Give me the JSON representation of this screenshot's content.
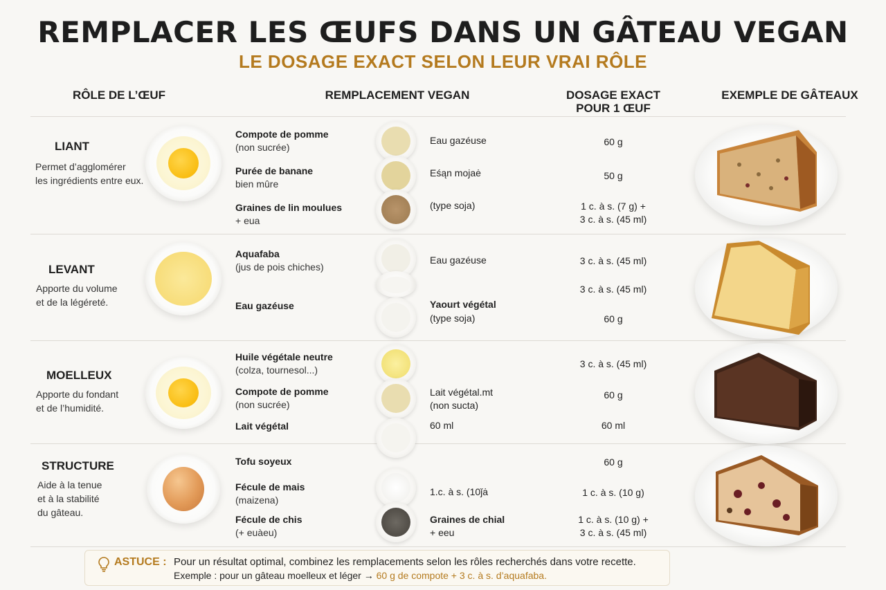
{
  "header": {
    "title": "REMPLACER LES ŒUFS DANS UN GÂTEAU VEGAN",
    "subtitle": "LE DOSAGE EXACT SELON LEUR VRAI RÔLE"
  },
  "columns": {
    "role": "RÔLE DE L’ŒUF",
    "replacement": "REMPLACEMENT VEGAN",
    "dose_line1": "DOSAGE EXACT",
    "dose_line2": "POUR 1 ŒUF",
    "example": "EXEMPLE DE GÂTEAUX"
  },
  "sections": [
    {
      "role": "LIANT",
      "desc1": "Permet d’agglomérer",
      "desc2": "les ingrédients entre eux.",
      "egg_icon": "egg-yolk-icon",
      "cake_icon": "banana-bread-slice-icon",
      "items": [
        {
          "name": "Compote de pomme",
          "sub": "(non sucrée)",
          "mid1": "Eau gazéuse",
          "dose1": "60 g",
          "bowl_icon": "applesauce-bowl-icon",
          "color": "#e9ddb0"
        },
        {
          "name": "Purée de banane",
          "sub": "bien mûre",
          "mid1": "Eśąn mojaė",
          "dose1": "50 g",
          "bowl_icon": "banana-puree-bowl-icon",
          "color": "#e3d49c"
        },
        {
          "name": "Graines de lin moulues",
          "sub": "+ eua",
          "mid1": "(type soja)",
          "dose1": "1 c. à s. (7 g) +",
          "dose2": "3 c. à s. (45 ml)",
          "bowl_icon": "flaxseed-bowl-icon",
          "color": "#a8855a"
        }
      ]
    },
    {
      "role": "LEVANT",
      "desc1": "Apporte du volume",
      "desc2": "et de la légéreté.",
      "egg_icon": "beaten-egg-icon",
      "cake_icon": "sponge-cake-slice-icon",
      "items": [
        {
          "name": "Aquafaba",
          "sub": "(jus de pois chiches)",
          "mid1": "Eau gazéuse",
          "dose1": "3 c. à s. (45 ml)",
          "bowl_icon": "aquafaba-bowl-icon",
          "color": "#f1efe6"
        },
        {
          "name": "",
          "sub": "",
          "mid1": "",
          "dose1": "3 c. à s. (45 ml)",
          "bowl_icon": "empty-bowl-icon",
          "color": "#f6f5f1"
        },
        {
          "name": "Eau gazéuse",
          "sub": "",
          "mid1": "Yaourt végétal",
          "mid2": "(type soja)",
          "dose1": "60 g",
          "bowl_icon": "yogurt-bowl-icon",
          "color": "#f4f3ee"
        }
      ]
    },
    {
      "role": "MOELLEUX",
      "desc1": "Apporte du fondant",
      "desc2": "et de l’humidité.",
      "egg_icon": "egg-yolk-icon",
      "cake_icon": "chocolate-cake-slice-icon",
      "items": [
        {
          "name": "Huile végétale neutre",
          "sub": "(colza, tournesol...)",
          "mid1": "",
          "dose1": "3 c. à s. (45 ml)",
          "bowl_icon": "oil-bowl-icon",
          "color": "#f1e27a"
        },
        {
          "name": "Compote de pomme",
          "sub": "(non sucrée)",
          "mid1": "Lait végétal.mt",
          "mid2": "(non sucta)",
          "dose1": "60 g",
          "bowl_icon": "applesauce-bowl-icon",
          "color": "#e9ddb0"
        },
        {
          "name": "Lait végétal",
          "sub": "",
          "mid1": "60 ml",
          "dose1": "60 ml",
          "bowl_icon": "plant-milk-bowl-icon",
          "color": "#f5f4ef"
        }
      ]
    },
    {
      "role": "STRUCTURE",
      "desc1": "Aide à la tenue",
      "desc2": "et à la stabilité",
      "desc3": "du gâteau.",
      "egg_icon": "whole-egg-icon",
      "cake_icon": "fruit-cake-slice-icon",
      "items": [
        {
          "name": "Tofu soyeux",
          "sub": "",
          "mid1": "",
          "dose1": "60 g",
          "bowl_icon": "",
          "color": ""
        },
        {
          "name": "Fécule de mais",
          "sub": "(maizena)",
          "mid1": "1.c. à s. (10ǰȧ",
          "dose1": "1 c. à s. (10 g)",
          "bowl_icon": "cornstarch-bowl-icon",
          "color": "#f4f3f0"
        },
        {
          "name": "Fécule de chis",
          "sub": "(+ euàeu)",
          "mid1": "Graines de chial",
          "mid2": "+ eeu",
          "dose1": "1 c. à s. (10 g) +",
          "dose2": "3 c. à s. (45 ml)",
          "bowl_icon": "chia-seed-bowl-icon",
          "color": "#5a5650"
        }
      ]
    }
  ],
  "tip": {
    "icon": "lightbulb-icon",
    "label": "ASTUCE :",
    "line1": "Pour un résultat optimal, combinez les remplacements selon les rôles recherchés dans votre recette.",
    "line2_prefix": "Exemple : pour un gâteau moelleux et léger →",
    "line2_accent": "60 g de compote + 3 c. à s. d’aquafaba."
  }
}
